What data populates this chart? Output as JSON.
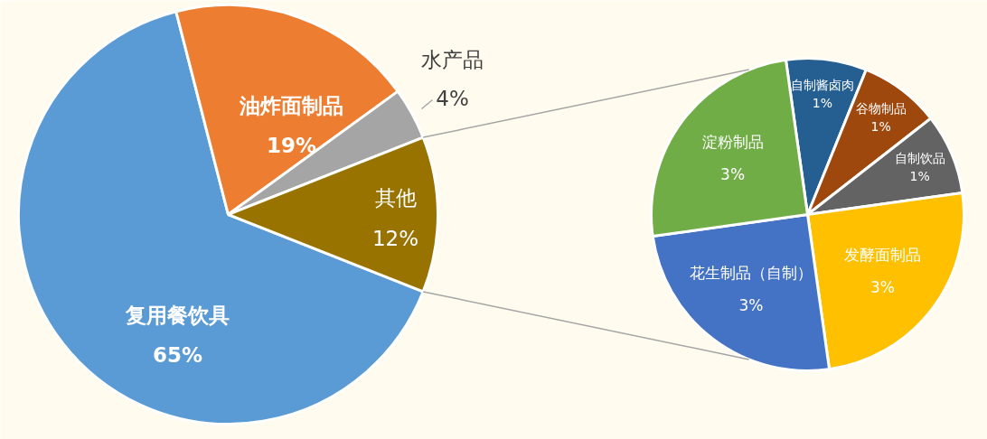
{
  "chart_data": [
    {
      "type": "pie",
      "categories": [
        "复用餐饮具",
        "油炸面制品",
        "水产品",
        "其他"
      ],
      "values": [
        65,
        19,
        4,
        12
      ],
      "value_labels": [
        "65%",
        "19%",
        "4%",
        "12%"
      ],
      "colors": [
        "#5b9bd5",
        "#ed7d31",
        "#a5a5a5",
        "#997300"
      ]
    },
    {
      "type": "pie",
      "categories": [
        "自制酱卤肉",
        "谷物制品",
        "自制饮品",
        "发酵面制品",
        "花生制品（自制）",
        "淀粉制品"
      ],
      "values": [
        1,
        1,
        1,
        3,
        3,
        3
      ],
      "value_labels": [
        "1%",
        "1%",
        "1%",
        "3%",
        "3%",
        "3%"
      ],
      "colors": [
        "#255e91",
        "#9e480e",
        "#636363",
        "#ffc000",
        "#4472c4",
        "#70ad47"
      ]
    }
  ]
}
